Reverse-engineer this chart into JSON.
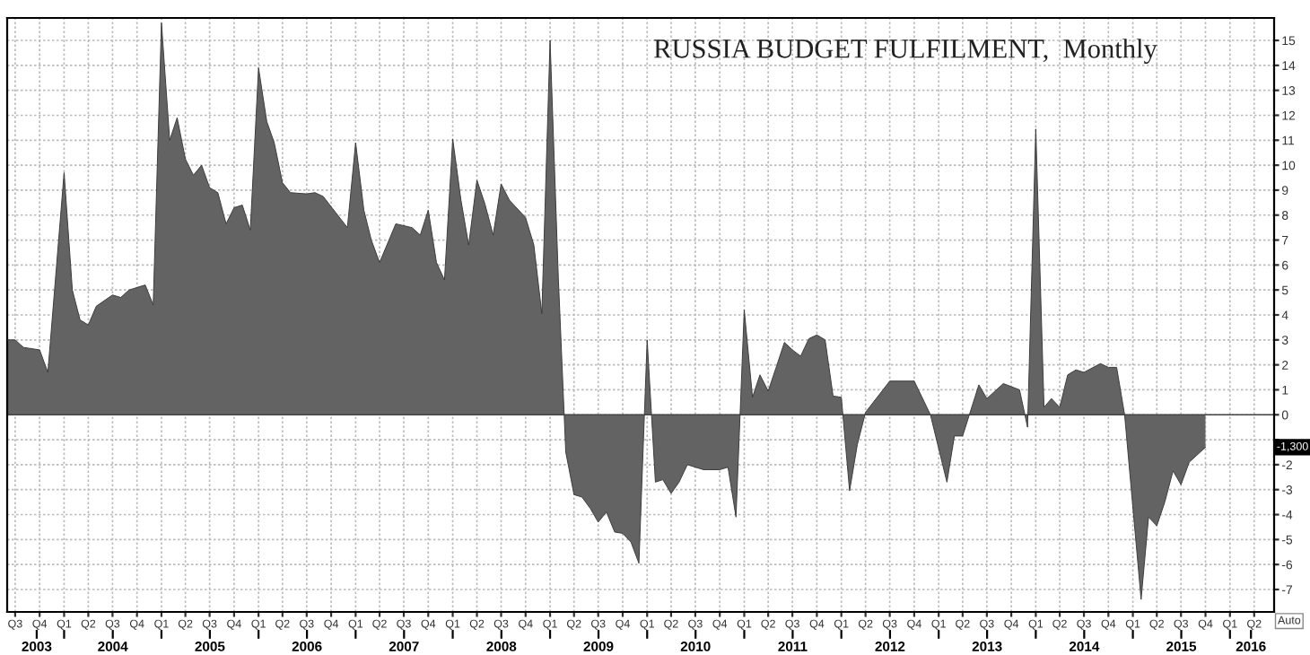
{
  "chart_data": {
    "type": "area",
    "title": "RUSSIA BUDGET FULFILMENT,  Monthly",
    "x": [
      "2003-06",
      "2003-07",
      "2003-08",
      "2003-10",
      "2003-11",
      "2004-01",
      "2004-02",
      "2004-03",
      "2004-04",
      "2004-05",
      "2004-07",
      "2004-08",
      "2004-09",
      "2004-11",
      "2004-12",
      "2005-01",
      "2005-02",
      "2005-03",
      "2005-04",
      "2005-05",
      "2005-06",
      "2005-07",
      "2005-08",
      "2005-09",
      "2005-10",
      "2005-11",
      "2005-12",
      "2006-01",
      "2006-02",
      "2006-03",
      "2006-04",
      "2006-05",
      "2006-07",
      "2006-08",
      "2006-09",
      "2006-12",
      "2007-01",
      "2007-02",
      "2007-03",
      "2007-04",
      "2007-06",
      "2007-08",
      "2007-09",
      "2007-10",
      "2007-11",
      "2007-12",
      "2008-01",
      "2008-02",
      "2008-03",
      "2008-04",
      "2008-05",
      "2008-06",
      "2008-07",
      "2008-08",
      "2008-10",
      "2008-11",
      "2008-12",
      "2009-01",
      "2009-02",
      "2009-03",
      "2009-04",
      "2009-05",
      "2009-06",
      "2009-07",
      "2009-08",
      "2009-09",
      "2009-10",
      "2009-11",
      "2009-12",
      "2010-01",
      "2010-02",
      "2010-03",
      "2010-04",
      "2010-05",
      "2010-06",
      "2010-08",
      "2010-10",
      "2010-11",
      "2010-12",
      "2011-01",
      "2011-02",
      "2011-03",
      "2011-04",
      "2011-05",
      "2011-06",
      "2011-07",
      "2011-08",
      "2011-09",
      "2011-10",
      "2011-11",
      "2011-12",
      "2012-01",
      "2012-02",
      "2012-03",
      "2012-04",
      "2012-07",
      "2012-10",
      "2012-12",
      "2013-02",
      "2013-03",
      "2013-04",
      "2013-06",
      "2013-07",
      "2013-09",
      "2013-11",
      "2013-12",
      "2014-01",
      "2014-02",
      "2014-03",
      "2014-04",
      "2014-05",
      "2014-06",
      "2014-07",
      "2014-09",
      "2014-10",
      "2014-11",
      "2014-12",
      "2015-02",
      "2015-03",
      "2015-04",
      "2015-05",
      "2015-06",
      "2015-07",
      "2015-08",
      "2015-10"
    ],
    "values": [
      3.0,
      3.0,
      2.7,
      2.6,
      1.7,
      9.7,
      5.0,
      3.8,
      3.6,
      4.35,
      4.8,
      4.7,
      5.0,
      5.2,
      4.4,
      15.7,
      11.0,
      11.9,
      10.25,
      9.6,
      10.0,
      9.1,
      8.9,
      7.65,
      8.3,
      8.4,
      7.4,
      13.9,
      11.75,
      10.9,
      9.3,
      8.9,
      8.85,
      8.9,
      8.75,
      7.5,
      10.9,
      8.2,
      7.0,
      6.1,
      7.65,
      7.5,
      7.2,
      8.2,
      6.1,
      5.4,
      11.05,
      8.6,
      6.8,
      9.4,
      8.45,
      7.2,
      9.25,
      8.6,
      7.9,
      6.8,
      4.05,
      15.0,
      5.5,
      -1.5,
      -3.2,
      -3.3,
      -3.75,
      -4.3,
      -3.9,
      -4.7,
      -4.75,
      -5.1,
      -5.95,
      3.0,
      -2.7,
      -2.6,
      -3.15,
      -2.7,
      -2.0,
      -2.2,
      -2.2,
      -2.1,
      -4.1,
      4.2,
      0.7,
      1.6,
      0.95,
      1.9,
      2.9,
      2.6,
      2.35,
      3.05,
      3.2,
      3.0,
      0.75,
      0.7,
      -3.05,
      -1.2,
      0.1,
      1.35,
      1.35,
      0.0,
      -2.7,
      -0.85,
      -0.85,
      1.2,
      0.65,
      1.25,
      1.0,
      -0.5,
      11.45,
      0.3,
      0.65,
      0.3,
      1.6,
      1.8,
      1.7,
      2.05,
      1.9,
      1.9,
      0.0,
      -7.4,
      -4.1,
      -4.45,
      -3.5,
      -2.25,
      -2.8,
      -1.9,
      -1.3
    ],
    "color": "#636363",
    "xlim": [
      "2003-06-01",
      "2016-06-15"
    ],
    "xticks": [
      {
        "value": "2003-07-01",
        "label": "Q3"
      },
      {
        "value": "2003-10-01",
        "label": "Q4"
      },
      {
        "value": "2004-01-01",
        "label": "Q1"
      },
      {
        "value": "2004-04-01",
        "label": "Q2"
      },
      {
        "value": "2004-07-01",
        "label": "Q3"
      },
      {
        "value": "2004-10-01",
        "label": "Q4"
      },
      {
        "value": "2005-01-01",
        "label": "Q1"
      },
      {
        "value": "2005-04-01",
        "label": "Q2"
      },
      {
        "value": "2005-07-01",
        "label": "Q3"
      },
      {
        "value": "2005-10-01",
        "label": "Q4"
      },
      {
        "value": "2006-01-01",
        "label": "Q1"
      },
      {
        "value": "2006-04-01",
        "label": "Q2"
      },
      {
        "value": "2006-07-01",
        "label": "Q3"
      },
      {
        "value": "2006-10-01",
        "label": "Q4"
      },
      {
        "value": "2007-01-01",
        "label": "Q1"
      },
      {
        "value": "2007-04-01",
        "label": "Q2"
      },
      {
        "value": "2007-07-01",
        "label": "Q3"
      },
      {
        "value": "2007-10-01",
        "label": "Q4"
      },
      {
        "value": "2008-01-01",
        "label": "Q1"
      },
      {
        "value": "2008-04-01",
        "label": "Q2"
      },
      {
        "value": "2008-07-01",
        "label": "Q3"
      },
      {
        "value": "2008-10-01",
        "label": "Q4"
      },
      {
        "value": "2009-01-01",
        "label": "Q1"
      },
      {
        "value": "2009-04-01",
        "label": "Q2"
      },
      {
        "value": "2009-07-01",
        "label": "Q3"
      },
      {
        "value": "2009-10-01",
        "label": "Q4"
      },
      {
        "value": "2010-01-01",
        "label": "Q1"
      },
      {
        "value": "2010-04-01",
        "label": "Q2"
      },
      {
        "value": "2010-07-01",
        "label": "Q3"
      },
      {
        "value": "2010-10-01",
        "label": "Q4"
      },
      {
        "value": "2011-01-01",
        "label": "Q1"
      },
      {
        "value": "2011-04-01",
        "label": "Q2"
      },
      {
        "value": "2011-07-01",
        "label": "Q3"
      },
      {
        "value": "2011-10-01",
        "label": "Q4"
      },
      {
        "value": "2012-01-01",
        "label": "Q1"
      },
      {
        "value": "2012-04-01",
        "label": "Q2"
      },
      {
        "value": "2012-07-01",
        "label": "Q3"
      },
      {
        "value": "2012-10-01",
        "label": "Q4"
      },
      {
        "value": "2013-01-01",
        "label": "Q1"
      },
      {
        "value": "2013-04-01",
        "label": "Q2"
      },
      {
        "value": "2013-07-01",
        "label": "Q3"
      },
      {
        "value": "2013-10-01",
        "label": "Q4"
      },
      {
        "value": "2014-01-01",
        "label": "Q1"
      },
      {
        "value": "2014-04-01",
        "label": "Q2"
      },
      {
        "value": "2014-07-01",
        "label": "Q3"
      },
      {
        "value": "2014-10-01",
        "label": "Q4"
      },
      {
        "value": "2015-01-01",
        "label": "Q1"
      },
      {
        "value": "2015-04-01",
        "label": "Q2"
      },
      {
        "value": "2015-07-01",
        "label": "Q3"
      },
      {
        "value": "2015-10-01",
        "label": "Q4"
      },
      {
        "value": "2016-01-01",
        "label": "Q1"
      },
      {
        "value": "2016-04-01",
        "label": "Q2"
      }
    ],
    "x2lim": [
      "2003-06-01",
      "2016-06-15"
    ],
    "x2ticks": [
      {
        "value": "2003-09-20",
        "label": "2003"
      },
      {
        "value": "2004-01-01",
        "label": null
      },
      {
        "value": "2004-07-02",
        "label": "2004"
      },
      {
        "value": "2005-01-01",
        "label": null
      },
      {
        "value": "2005-07-02",
        "label": "2005"
      },
      {
        "value": "2006-01-01",
        "label": null
      },
      {
        "value": "2006-07-02",
        "label": "2006"
      },
      {
        "value": "2007-01-01",
        "label": null
      },
      {
        "value": "2007-07-02",
        "label": "2007"
      },
      {
        "value": "2008-01-01",
        "label": null
      },
      {
        "value": "2008-07-02",
        "label": "2008"
      },
      {
        "value": "2009-01-01",
        "label": null
      },
      {
        "value": "2009-07-02",
        "label": "2009"
      },
      {
        "value": "2010-01-01",
        "label": null
      },
      {
        "value": "2010-07-02",
        "label": "2010"
      },
      {
        "value": "2011-01-01",
        "label": null
      },
      {
        "value": "2011-07-02",
        "label": "2011"
      },
      {
        "value": "2012-01-01",
        "label": null
      },
      {
        "value": "2012-07-02",
        "label": "2012"
      },
      {
        "value": "2013-01-01",
        "label": null
      },
      {
        "value": "2013-07-02",
        "label": "2013"
      },
      {
        "value": "2014-01-01",
        "label": null
      },
      {
        "value": "2014-07-02",
        "label": "2014"
      },
      {
        "value": "2015-01-01",
        "label": null
      },
      {
        "value": "2015-07-02",
        "label": "2015"
      },
      {
        "value": "2016-01-01",
        "label": null
      },
      {
        "value": "2016-03-20",
        "label": "2016"
      }
    ],
    "ylim": [
      -7.9,
      15.9
    ],
    "yticks": [
      -7,
      -6,
      -5,
      -4,
      -3,
      -2,
      {
        "value": -1,
        "label": null
      },
      0,
      1,
      2,
      3,
      4,
      5,
      6,
      7,
      8,
      9,
      10,
      11,
      12,
      13,
      14,
      15
    ],
    "grid": true,
    "annotations": [
      "-1,300",
      "Auto"
    ]
  }
}
